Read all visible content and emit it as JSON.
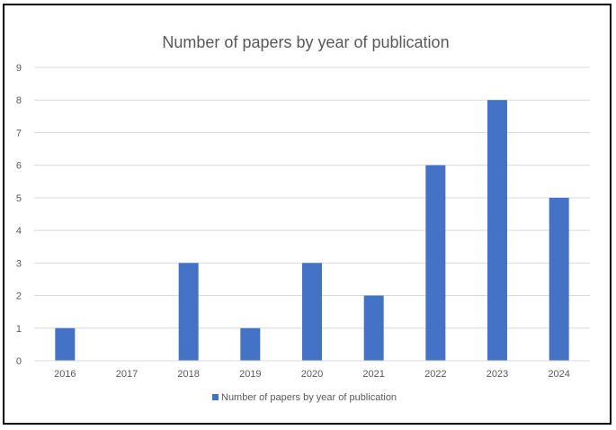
{
  "chart_data": {
    "type": "bar",
    "title": "Number of papers by year of publication",
    "categories": [
      "2016",
      "2017",
      "2018",
      "2019",
      "2020",
      "2021",
      "2022",
      "2023",
      "2024"
    ],
    "series": [
      {
        "name": "Number of papers by year of publication",
        "values": [
          1,
          0,
          3,
          1,
          3,
          2,
          6,
          8,
          5
        ]
      }
    ],
    "ylim": [
      0,
      9
    ],
    "yticks": [
      "0",
      "1",
      "2",
      "3",
      "4",
      "5",
      "6",
      "7",
      "8",
      "9"
    ],
    "xlabel": "",
    "ylabel": "",
    "grid": true,
    "legend": "bottom",
    "colors": {
      "bar": "#4472C4",
      "grid": "#D9D9D9",
      "text": "#595959",
      "border": "#000000"
    }
  }
}
